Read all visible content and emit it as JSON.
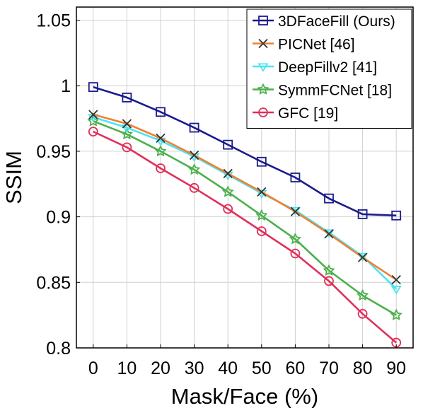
{
  "chart_data": {
    "type": "line",
    "xlabel": "Mask/Face (%)",
    "ylabel": "SSIM",
    "x": [
      0,
      10,
      20,
      30,
      40,
      50,
      60,
      70,
      80,
      90
    ],
    "xlim": [
      -5,
      95
    ],
    "ylim": [
      0.8,
      1.06
    ],
    "xticks": [
      "0",
      "10",
      "20",
      "30",
      "40",
      "50",
      "60",
      "70",
      "80",
      "90"
    ],
    "yticks": [
      "0.8",
      "0.85",
      "0.9",
      "0.95",
      "1",
      "1.05"
    ],
    "ytick_values": [
      0.8,
      0.85,
      0.9,
      0.95,
      1.0,
      1.05
    ],
    "grid": true,
    "legend_position": "top-right",
    "series": [
      {
        "name": "3DFaceFill (Ours)",
        "color": "#1a1a8c",
        "marker": "square",
        "values": [
          0.999,
          0.991,
          0.98,
          0.968,
          0.955,
          0.942,
          0.93,
          0.914,
          0.902,
          0.901
        ]
      },
      {
        "name": "PICNet [46]",
        "color": "#f08030",
        "marker": "x",
        "values": [
          0.978,
          0.971,
          0.96,
          0.947,
          0.933,
          0.919,
          0.904,
          0.887,
          0.869,
          0.852
        ]
      },
      {
        "name": "DeepFillv2 [41]",
        "color": "#4de3f0",
        "marker": "triangle-down",
        "values": [
          0.976,
          0.968,
          0.958,
          0.946,
          0.932,
          0.918,
          0.905,
          0.888,
          0.87,
          0.845
        ]
      },
      {
        "name": "SymmFCNet [18]",
        "color": "#4cb04c",
        "marker": "star",
        "values": [
          0.973,
          0.963,
          0.95,
          0.936,
          0.919,
          0.901,
          0.883,
          0.859,
          0.84,
          0.825
        ]
      },
      {
        "name": "GFC [19]",
        "color": "#e0305a",
        "marker": "circle",
        "values": [
          0.965,
          0.953,
          0.937,
          0.922,
          0.906,
          0.889,
          0.872,
          0.851,
          0.826,
          0.804
        ]
      }
    ]
  }
}
